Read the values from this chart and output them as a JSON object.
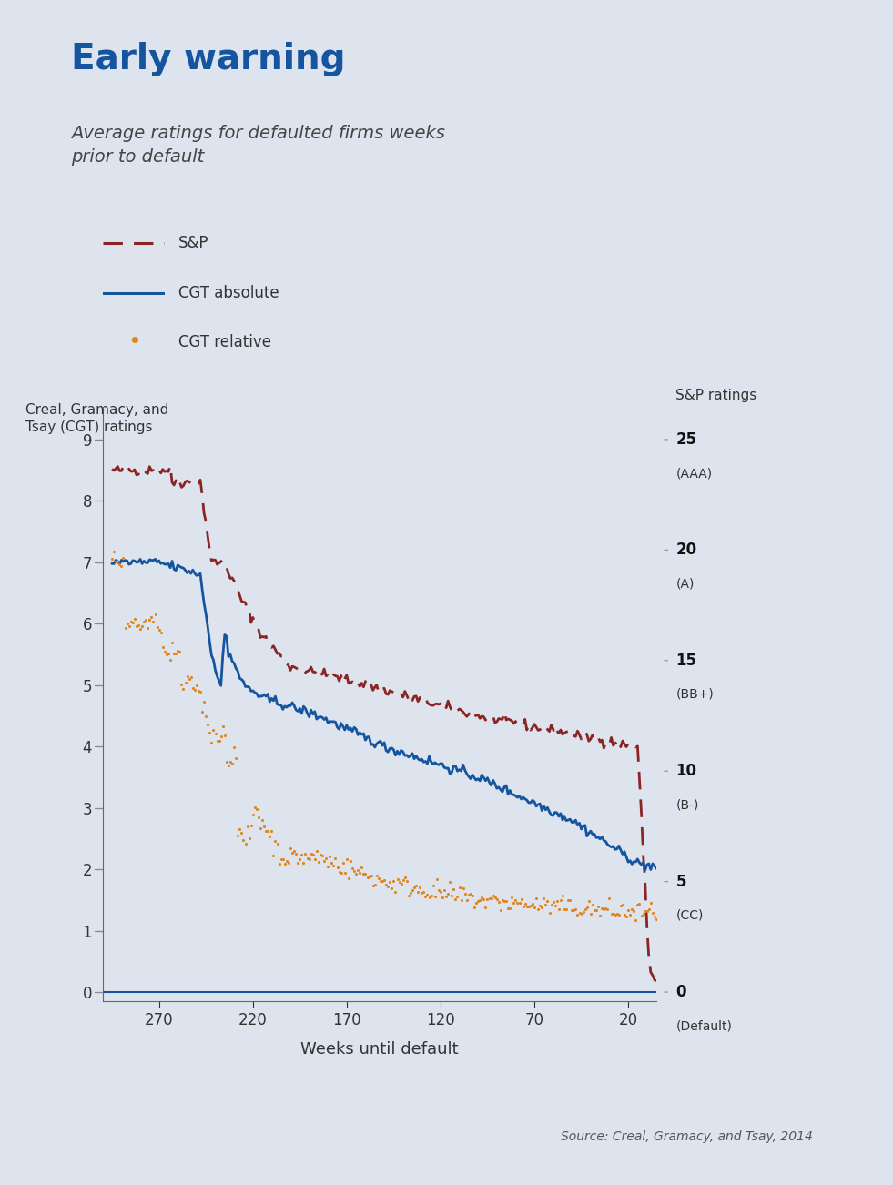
{
  "title": "Early warning",
  "subtitle": "Average ratings for defaulted firms weeks\nprior to default",
  "source": "Source: Creal, Gramacy, and Tsay, 2014",
  "background_color": "#dde4ed",
  "left_ylabel": "Creal, Gramacy, and\nTsay (CGT) ratings",
  "right_ylabel": "S&P ratings",
  "xlabel": "Weeks until default",
  "left_yticks": [
    0,
    1,
    2,
    3,
    4,
    5,
    6,
    7,
    8,
    9
  ],
  "right_yticks_vals": [
    0,
    5,
    10,
    15,
    20,
    25
  ],
  "right_tick_numbers": [
    "0",
    "5",
    "10",
    "15",
    "20",
    "25"
  ],
  "right_tick_labels": [
    "(Default)",
    "(CC)",
    "(B-)",
    "(BB+)",
    "(A)",
    "(AAA)"
  ],
  "xticks": [
    270,
    220,
    170,
    120,
    70,
    20
  ],
  "xlim_left": 300,
  "xlim_right": 5,
  "ylim_bottom": -0.15,
  "ylim_top": 9.5,
  "title_color": "#1555a0",
  "subtitle_color": "#444444",
  "sp_color": "#8b2525",
  "cgt_abs_color": "#1555a0",
  "cgt_rel_color": "#e08520",
  "legend_labels": [
    "S&P",
    "CGT absolute",
    "CGT relative"
  ]
}
